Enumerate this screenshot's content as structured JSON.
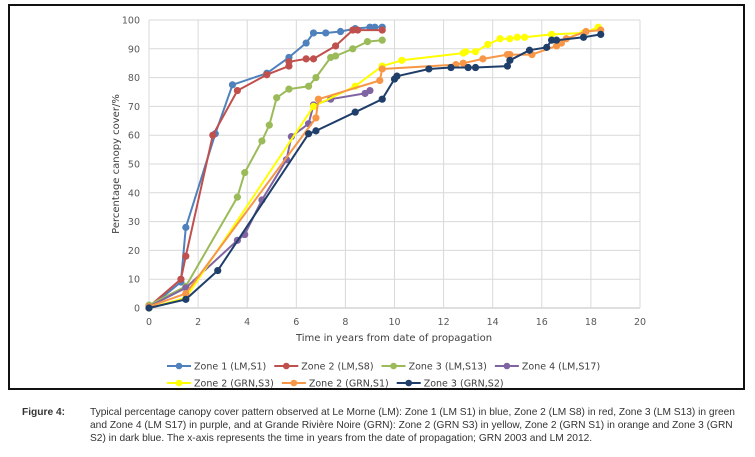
{
  "chart_data": {
    "type": "line",
    "title": "",
    "xlabel": "Time in years from date of propagation",
    "ylabel": "Percentage canopy cover/%",
    "xlim": [
      0,
      20
    ],
    "ylim": [
      0,
      100
    ],
    "xticks": [
      0,
      2,
      4,
      6,
      8,
      10,
      12,
      14,
      16,
      18,
      20
    ],
    "yticks": [
      0,
      10,
      20,
      30,
      40,
      50,
      60,
      70,
      80,
      90,
      100
    ],
    "grid": true,
    "legend_position": "bottom",
    "series": [
      {
        "name": "Zone 1 (LM,S1)",
        "color": "#4f81bd",
        "x": [
          0,
          1.3,
          1.5,
          2.7,
          3.4,
          4.8,
          5.7,
          6.4,
          6.7,
          7.2,
          7.8,
          8.4,
          9.0,
          9.2,
          9.5
        ],
        "y": [
          0,
          9,
          28,
          60.5,
          77.5,
          81.5,
          87,
          92,
          95.5,
          95.5,
          96,
          97,
          97.5,
          97.5,
          97.5
        ]
      },
      {
        "name": "Zone 2 (LM,S8)",
        "color": "#c0504d",
        "x": [
          0,
          1.3,
          1.5,
          2.6,
          3.6,
          4.8,
          5.7,
          5.7,
          6.4,
          6.7,
          7.6,
          8.3,
          8.5,
          9.5
        ],
        "y": [
          0.5,
          10,
          18,
          60,
          75.5,
          81,
          84,
          85.5,
          86.5,
          86.5,
          91,
          96.5,
          96.5,
          96.5
        ]
      },
      {
        "name": "Zone 3 (LM,S13)",
        "color": "#9bbb59",
        "x": [
          0,
          1.5,
          3.6,
          3.9,
          4.6,
          4.9,
          5.2,
          5.7,
          6.5,
          6.8,
          7.4,
          7.6,
          8.3,
          8.9,
          9.5
        ],
        "y": [
          1,
          7.5,
          38.5,
          47,
          58,
          63.5,
          73,
          76,
          77,
          80,
          87,
          87.5,
          90,
          92.5,
          93
        ]
      },
      {
        "name": "Zone 4 (LM,S17)",
        "color": "#8064a2",
        "x": [
          0,
          1.5,
          3.6,
          3.9,
          4.6,
          5.6,
          5.8,
          6.5,
          6.7,
          7.4,
          8.8,
          9.0
        ],
        "y": [
          0.5,
          7,
          23.5,
          25.5,
          37.5,
          51.5,
          59.5,
          64,
          70.5,
          72.5,
          74.5,
          75.5
        ]
      },
      {
        "name": "Zone 2 (GRN,S3)",
        "color": "#ffff00",
        "x": [
          0,
          1.5,
          6.7,
          8.4,
          9.5,
          10.3,
          12.8,
          12.9,
          13.3,
          13.8,
          14.3,
          14.7,
          15.0,
          15.3,
          16.4,
          17.7,
          18.3
        ],
        "y": [
          0,
          3.5,
          70,
          77,
          84,
          86,
          88.5,
          89,
          89,
          91.5,
          93.5,
          93.5,
          94,
          94,
          95,
          95.5,
          97.5
        ]
      },
      {
        "name": "Zone 2 (GRN,S1)",
        "color": "#f79646",
        "x": [
          0,
          1.5,
          6.8,
          6.9,
          9.4,
          9.5,
          12.5,
          12.8,
          13.6,
          14.6,
          14.7,
          15.6,
          16.6,
          16.8,
          17.0,
          17.8,
          18.4
        ],
        "y": [
          0.5,
          5,
          66,
          72.5,
          79,
          83,
          84.5,
          85,
          86.5,
          88,
          88,
          88,
          91,
          92,
          93.5,
          96,
          96.5
        ]
      },
      {
        "name": "Zone 3 (GRN,S2)",
        "color": "#1f3e6a",
        "x": [
          0,
          1.5,
          2.8,
          6.5,
          6.8,
          8.4,
          9.5,
          10.0,
          10.1,
          11.4,
          12.3,
          13.0,
          13.3,
          14.6,
          14.7,
          15.5,
          16.2,
          16.4,
          16.6,
          17.7,
          18.4
        ],
        "y": [
          0,
          3,
          13,
          60.5,
          61.5,
          68,
          72.5,
          79.5,
          80.5,
          83,
          83.5,
          83.5,
          83.5,
          84,
          86,
          89.5,
          90.5,
          93,
          93,
          94,
          95
        ]
      }
    ]
  },
  "caption": {
    "label": "Figure 4:",
    "text": "Typical percentage canopy cover pattern observed at Le Morne (LM): Zone 1 (LM S1) in blue, Zone 2 (LM S8) in red, Zone 3 (LM S13) in green and Zone 4 (LM S17) in purple, and at Grande Rivière Noire (GRN): Zone 2 (GRN S3) in yellow, Zone 2 (GRN S1) in orange and Zone 3 (GRN S2) in dark blue. The x-axis represents the time in years from the date of propagation; GRN 2003 and LM 2012."
  }
}
